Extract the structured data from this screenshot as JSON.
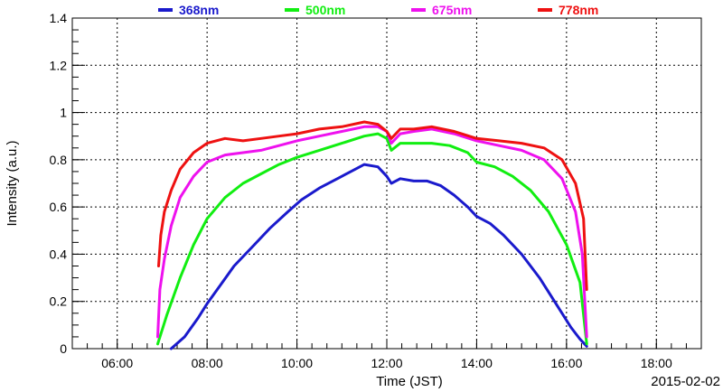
{
  "chart_data": {
    "type": "line",
    "xlabel": "Time (JST)",
    "ylabel": "Intensity (a.u.)",
    "date_label": "2015-02-02",
    "x_unit": "hours",
    "xlim": [
      5.0,
      19.0
    ],
    "ylim": [
      0,
      1.4
    ],
    "x_ticks": [
      {
        "value": 6,
        "label": "06:00"
      },
      {
        "value": 8,
        "label": "08:00"
      },
      {
        "value": 10,
        "label": "10:00"
      },
      {
        "value": 12,
        "label": "12:00"
      },
      {
        "value": 14,
        "label": "14:00"
      },
      {
        "value": 16,
        "label": "16:00"
      },
      {
        "value": 18,
        "label": "18:00"
      }
    ],
    "y_ticks": [
      {
        "value": 0,
        "label": "0"
      },
      {
        "value": 0.2,
        "label": "0.2"
      },
      {
        "value": 0.4,
        "label": "0.4"
      },
      {
        "value": 0.6,
        "label": "0.6"
      },
      {
        "value": 0.8,
        "label": "0.8"
      },
      {
        "value": 1.0,
        "label": "1"
      },
      {
        "value": 1.2,
        "label": "1.2"
      },
      {
        "value": 1.4,
        "label": "1.4"
      }
    ],
    "grid": true,
    "legend_position": "top",
    "series": [
      {
        "name": "368nm",
        "color": "#1a1acc",
        "x": [
          7.2,
          7.5,
          7.8,
          8.0,
          8.3,
          8.6,
          9.0,
          9.4,
          9.8,
          10.1,
          10.5,
          10.9,
          11.2,
          11.5,
          11.8,
          12.0,
          12.1,
          12.3,
          12.6,
          12.9,
          13.2,
          13.5,
          13.8,
          14.0,
          14.3,
          14.6,
          15.0,
          15.4,
          15.8,
          16.1,
          16.3,
          16.45
        ],
        "y": [
          0.0,
          0.05,
          0.13,
          0.19,
          0.27,
          0.35,
          0.43,
          0.51,
          0.58,
          0.63,
          0.68,
          0.72,
          0.75,
          0.78,
          0.77,
          0.73,
          0.7,
          0.72,
          0.71,
          0.71,
          0.69,
          0.65,
          0.6,
          0.56,
          0.53,
          0.48,
          0.4,
          0.3,
          0.18,
          0.09,
          0.04,
          0.01
        ]
      },
      {
        "name": "500nm",
        "color": "#11ee11",
        "x": [
          6.9,
          7.1,
          7.4,
          7.7,
          8.0,
          8.4,
          8.8,
          9.2,
          9.6,
          10.0,
          10.5,
          11.0,
          11.5,
          11.8,
          12.0,
          12.1,
          12.3,
          12.6,
          13.0,
          13.4,
          13.8,
          14.0,
          14.4,
          14.8,
          15.2,
          15.6,
          16.0,
          16.3,
          16.45
        ],
        "y": [
          0.02,
          0.14,
          0.3,
          0.44,
          0.55,
          0.64,
          0.7,
          0.74,
          0.78,
          0.81,
          0.84,
          0.87,
          0.9,
          0.91,
          0.89,
          0.84,
          0.87,
          0.87,
          0.87,
          0.86,
          0.83,
          0.79,
          0.77,
          0.73,
          0.67,
          0.58,
          0.44,
          0.28,
          0.02
        ]
      },
      {
        "name": "675nm",
        "color": "#ee11ee",
        "x": [
          6.9,
          6.95,
          7.05,
          7.2,
          7.4,
          7.7,
          8.0,
          8.4,
          8.8,
          9.2,
          9.6,
          10.0,
          10.5,
          11.0,
          11.5,
          11.8,
          12.0,
          12.1,
          12.3,
          12.6,
          13.0,
          13.5,
          14.0,
          14.5,
          15.0,
          15.5,
          15.9,
          16.2,
          16.35,
          16.45
        ],
        "y": [
          0.05,
          0.25,
          0.38,
          0.52,
          0.64,
          0.73,
          0.79,
          0.82,
          0.83,
          0.84,
          0.86,
          0.88,
          0.9,
          0.92,
          0.94,
          0.94,
          0.92,
          0.87,
          0.91,
          0.92,
          0.93,
          0.91,
          0.88,
          0.86,
          0.84,
          0.8,
          0.72,
          0.58,
          0.4,
          0.05
        ]
      },
      {
        "name": "778nm",
        "color": "#ee1111",
        "x": [
          6.92,
          6.97,
          7.05,
          7.2,
          7.4,
          7.7,
          8.0,
          8.4,
          8.8,
          9.2,
          9.6,
          10.0,
          10.5,
          11.0,
          11.5,
          11.8,
          12.0,
          12.1,
          12.3,
          12.6,
          13.0,
          13.5,
          14.0,
          14.5,
          15.0,
          15.5,
          15.9,
          16.2,
          16.38,
          16.45
        ],
        "y": [
          0.35,
          0.48,
          0.58,
          0.67,
          0.76,
          0.83,
          0.87,
          0.89,
          0.88,
          0.89,
          0.9,
          0.91,
          0.93,
          0.94,
          0.96,
          0.95,
          0.92,
          0.89,
          0.93,
          0.93,
          0.94,
          0.92,
          0.89,
          0.88,
          0.87,
          0.85,
          0.8,
          0.7,
          0.55,
          0.25
        ]
      }
    ]
  }
}
